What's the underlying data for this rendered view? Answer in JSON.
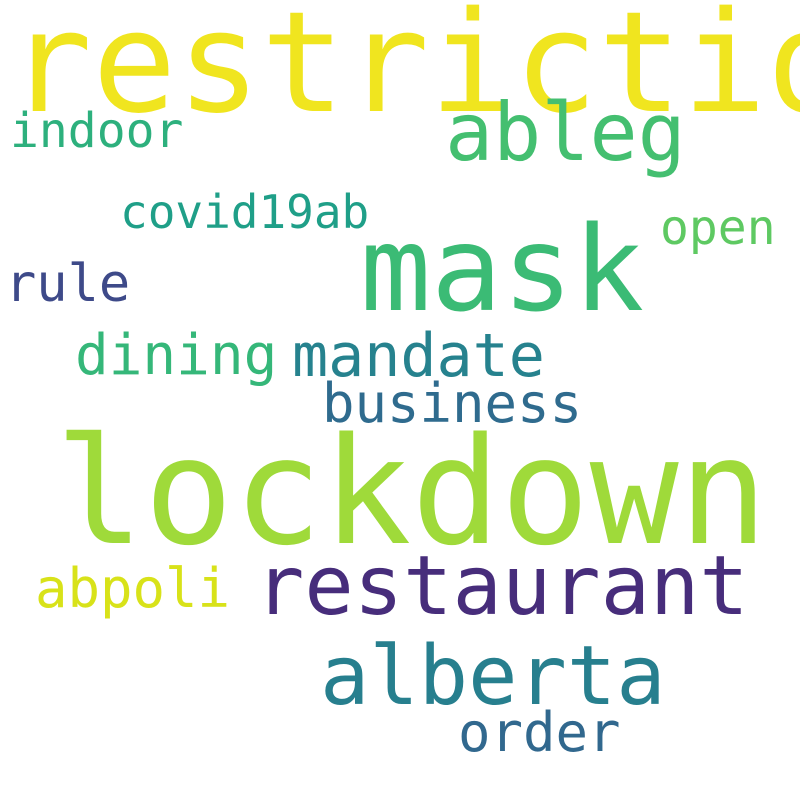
{
  "background": "#ffffff",
  "words": [
    {
      "text": "restriction",
      "color": "#f0e51f"
    },
    {
      "text": "ableg",
      "color": "#44bf70"
    },
    {
      "text": "indoor",
      "color": "#2db07d"
    },
    {
      "text": "covid19ab",
      "color": "#1f9f88"
    },
    {
      "text": "open",
      "color": "#5ec962"
    },
    {
      "text": "mask",
      "color": "#3bbb75"
    },
    {
      "text": "rule",
      "color": "#3e4a89"
    },
    {
      "text": "dining",
      "color": "#35b779"
    },
    {
      "text": "mandate",
      "color": "#26828e"
    },
    {
      "text": "business",
      "color": "#2f6b8e"
    },
    {
      "text": "lockdown",
      "color": "#9fda3a"
    },
    {
      "text": "abpoli",
      "color": "#d8e219"
    },
    {
      "text": "restaurant",
      "color": "#472d7b"
    },
    {
      "text": "alberta",
      "color": "#277f8e"
    },
    {
      "text": "order",
      "color": "#31688e"
    }
  ]
}
